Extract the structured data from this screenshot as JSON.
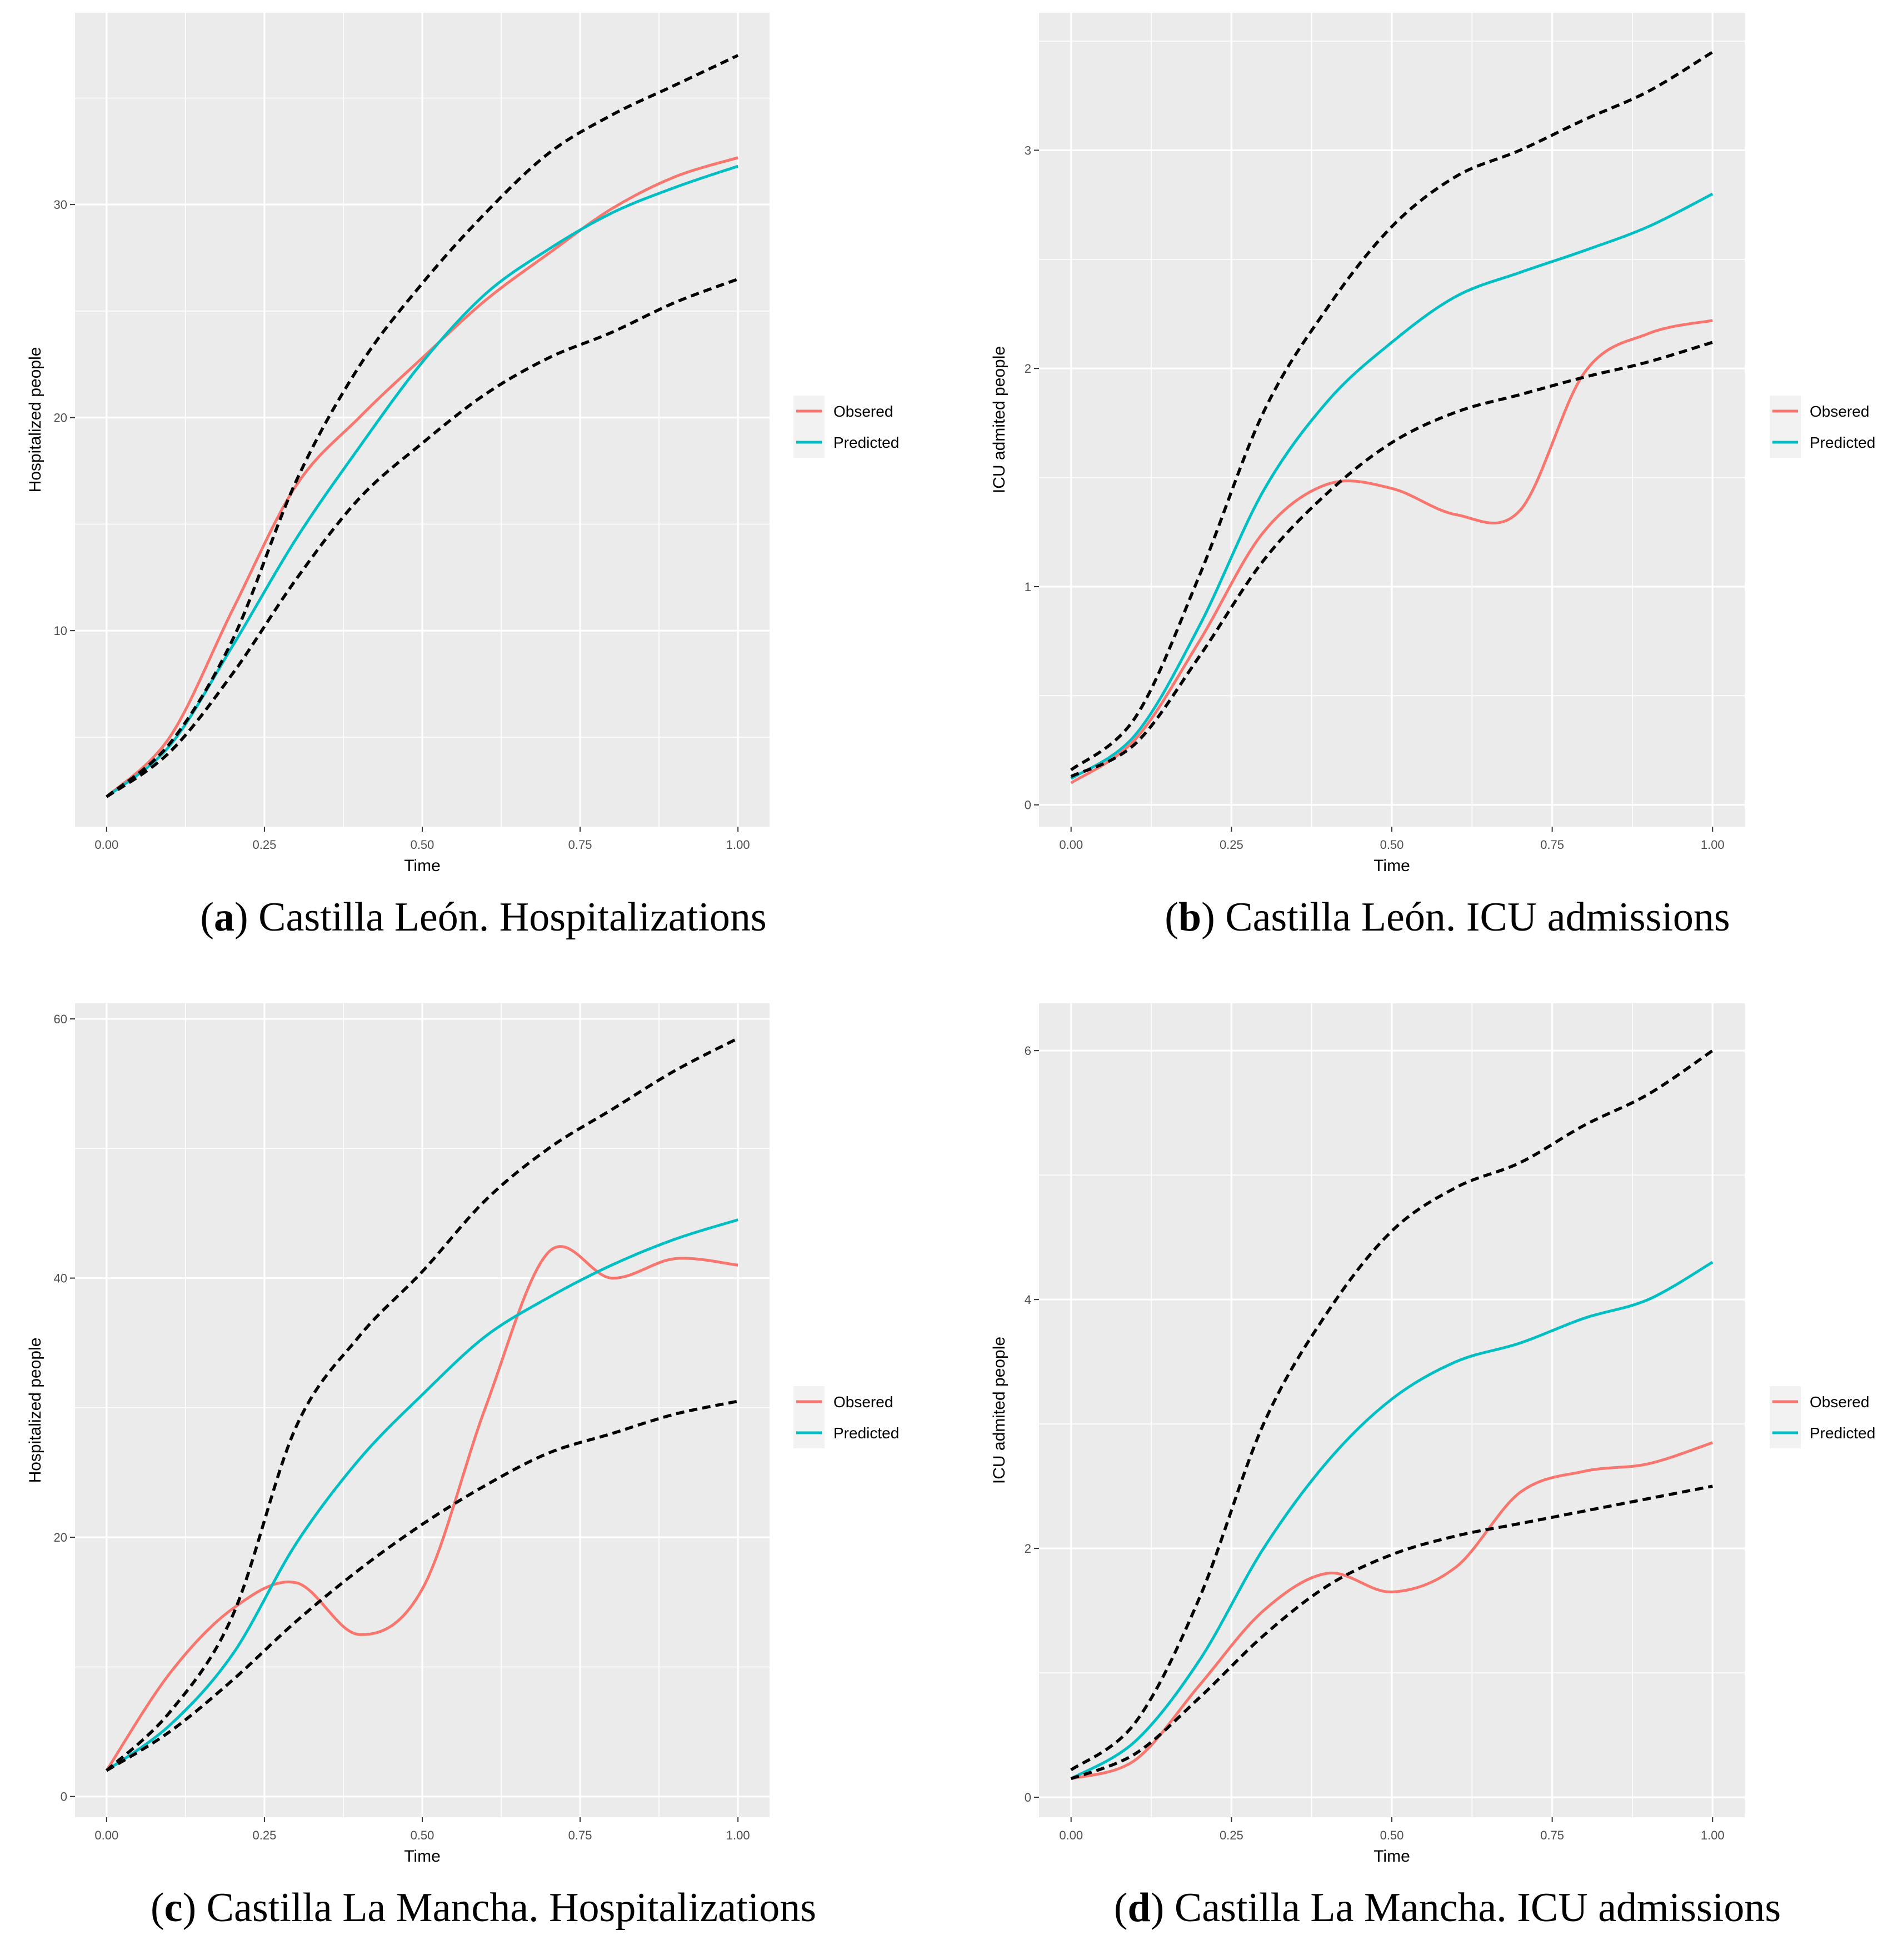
{
  "chart_data": [
    {
      "type": "line",
      "caption_letter": "a",
      "caption_text": "Castilla León. Hospitalizations",
      "xlabel": "Time",
      "ylabel": "Hospitalized people",
      "xlim": [
        -0.05,
        1.05
      ],
      "ylim": [
        0.8,
        39
      ],
      "xticks": [
        0,
        0.25,
        0.5,
        0.75,
        1
      ],
      "xtick_labels": [
        "0.00",
        "0.25",
        "0.50",
        "0.75",
        "1.00"
      ],
      "yticks": [
        10,
        20,
        30
      ],
      "ytick_labels": [
        "10",
        "20",
        "30"
      ],
      "legend_position": "right",
      "x": [
        0,
        0.1,
        0.2,
        0.3,
        0.4,
        0.5,
        0.6,
        0.7,
        0.8,
        0.9,
        1.0
      ],
      "series": [
        {
          "name": "Obsered",
          "color": "#F8766D",
          "style": "solid",
          "values": [
            2.2,
            5.0,
            11.0,
            16.8,
            20.0,
            22.8,
            25.5,
            27.7,
            29.8,
            31.3,
            32.2
          ]
        },
        {
          "name": "Predicted",
          "color": "#00BFC4",
          "style": "solid",
          "values": [
            2.2,
            4.6,
            9.3,
            14.3,
            18.6,
            22.6,
            25.8,
            27.9,
            29.6,
            30.8,
            31.8
          ]
        },
        {
          "style": "dashed",
          "color": "#000000",
          "values": [
            2.2,
            4.7,
            9.6,
            17.0,
            22.4,
            26.3,
            29.6,
            32.4,
            34.2,
            35.6,
            37.0
          ]
        },
        {
          "style": "dashed",
          "color": "#000000",
          "values": [
            2.2,
            4.3,
            8.0,
            12.4,
            16.2,
            18.8,
            21.1,
            22.8,
            24.0,
            25.4,
            26.5
          ]
        }
      ]
    },
    {
      "type": "line",
      "caption_letter": "b",
      "caption_text": "Castilla León. ICU admissions",
      "xlabel": "Time",
      "ylabel": "ICU admited people",
      "xlim": [
        -0.05,
        1.05
      ],
      "ylim": [
        -0.1,
        3.63
      ],
      "xticks": [
        0,
        0.25,
        0.5,
        0.75,
        1
      ],
      "xtick_labels": [
        "0.00",
        "0.25",
        "0.50",
        "0.75",
        "1.00"
      ],
      "yticks": [
        0,
        1,
        2,
        3
      ],
      "ytick_labels": [
        "0",
        "1",
        "2",
        "3"
      ],
      "legend_position": "right",
      "x": [
        0,
        0.1,
        0.2,
        0.3,
        0.4,
        0.5,
        0.6,
        0.7,
        0.8,
        0.9,
        1.0
      ],
      "series": [
        {
          "name": "Obsered",
          "color": "#F8766D",
          "style": "solid",
          "values": [
            0.1,
            0.3,
            0.75,
            1.25,
            1.47,
            1.45,
            1.33,
            1.35,
            1.98,
            2.16,
            2.22
          ]
        },
        {
          "name": "Predicted",
          "color": "#00BFC4",
          "style": "solid",
          "values": [
            0.12,
            0.32,
            0.82,
            1.44,
            1.85,
            2.12,
            2.33,
            2.44,
            2.54,
            2.65,
            2.8
          ]
        },
        {
          "style": "dashed",
          "color": "#000000",
          "values": [
            0.16,
            0.4,
            1.05,
            1.8,
            2.28,
            2.65,
            2.88,
            3.0,
            3.14,
            3.27,
            3.45
          ]
        },
        {
          "style": "dashed",
          "color": "#000000",
          "values": [
            0.13,
            0.28,
            0.68,
            1.12,
            1.43,
            1.66,
            1.8,
            1.88,
            1.96,
            2.03,
            2.12
          ]
        }
      ]
    },
    {
      "type": "line",
      "caption_letter": "c",
      "caption_text": "Castilla La Mancha. Hospitalizations",
      "xlabel": "Time",
      "ylabel": "Hospitalized people",
      "xlim": [
        -0.05,
        1.05
      ],
      "ylim": [
        -1.6,
        61.2
      ],
      "xticks": [
        0,
        0.25,
        0.5,
        0.75,
        1
      ],
      "xtick_labels": [
        "0.00",
        "0.25",
        "0.50",
        "0.75",
        "1.00"
      ],
      "yticks": [
        0,
        20,
        40,
        60
      ],
      "ytick_labels": [
        "0",
        "20",
        "40",
        "60"
      ],
      "legend_position": "right",
      "x": [
        0,
        0.1,
        0.2,
        0.3,
        0.4,
        0.5,
        0.6,
        0.7,
        0.8,
        0.9,
        1.0
      ],
      "series": [
        {
          "name": "Obsered",
          "color": "#F8766D",
          "style": "solid",
          "values": [
            2.0,
            9.5,
            14.5,
            16.5,
            12.5,
            16.0,
            30.0,
            42.0,
            40.0,
            41.5,
            41.0
          ]
        },
        {
          "name": "Predicted",
          "color": "#00BFC4",
          "style": "solid",
          "values": [
            2.0,
            5.5,
            11.0,
            19.5,
            26.0,
            31.0,
            35.5,
            38.5,
            41.0,
            43.0,
            44.5
          ]
        },
        {
          "style": "dashed",
          "color": "#000000",
          "values": [
            2.0,
            6.5,
            14.0,
            28.5,
            35.5,
            40.5,
            46.0,
            50.0,
            53.0,
            56.0,
            58.5
          ]
        },
        {
          "style": "dashed",
          "color": "#000000",
          "values": [
            2.0,
            5.0,
            9.0,
            13.5,
            17.5,
            21.0,
            24.0,
            26.5,
            28.0,
            29.5,
            30.5
          ]
        }
      ]
    },
    {
      "type": "line",
      "caption_letter": "d",
      "caption_text": "Castilla La Mancha. ICU admissions",
      "xlabel": "Time",
      "ylabel": "ICU admited people",
      "xlim": [
        -0.05,
        1.05
      ],
      "ylim": [
        -0.16,
        6.38
      ],
      "xticks": [
        0,
        0.25,
        0.5,
        0.75,
        1
      ],
      "xtick_labels": [
        "0.00",
        "0.25",
        "0.50",
        "0.75",
        "1.00"
      ],
      "yticks": [
        0,
        2,
        4,
        6
      ],
      "ytick_labels": [
        "0",
        "2",
        "4",
        "6"
      ],
      "legend_position": "right",
      "x": [
        0,
        0.1,
        0.2,
        0.3,
        0.4,
        0.5,
        0.6,
        0.7,
        0.8,
        0.9,
        1.0
      ],
      "series": [
        {
          "name": "Obsered",
          "color": "#F8766D",
          "style": "solid",
          "values": [
            0.15,
            0.3,
            0.9,
            1.5,
            1.8,
            1.65,
            1.85,
            2.45,
            2.62,
            2.68,
            2.85
          ]
        },
        {
          "name": "Predicted",
          "color": "#00BFC4",
          "style": "solid",
          "values": [
            0.15,
            0.45,
            1.1,
            2.0,
            2.7,
            3.2,
            3.5,
            3.65,
            3.85,
            4.0,
            4.3
          ]
        },
        {
          "style": "dashed",
          "color": "#000000",
          "values": [
            0.22,
            0.6,
            1.6,
            3.0,
            3.9,
            4.55,
            4.9,
            5.1,
            5.4,
            5.65,
            6.0
          ]
        },
        {
          "style": "dashed",
          "color": "#000000",
          "values": [
            0.15,
            0.35,
            0.8,
            1.3,
            1.7,
            1.95,
            2.1,
            2.2,
            2.3,
            2.4,
            2.5
          ]
        }
      ]
    }
  ]
}
